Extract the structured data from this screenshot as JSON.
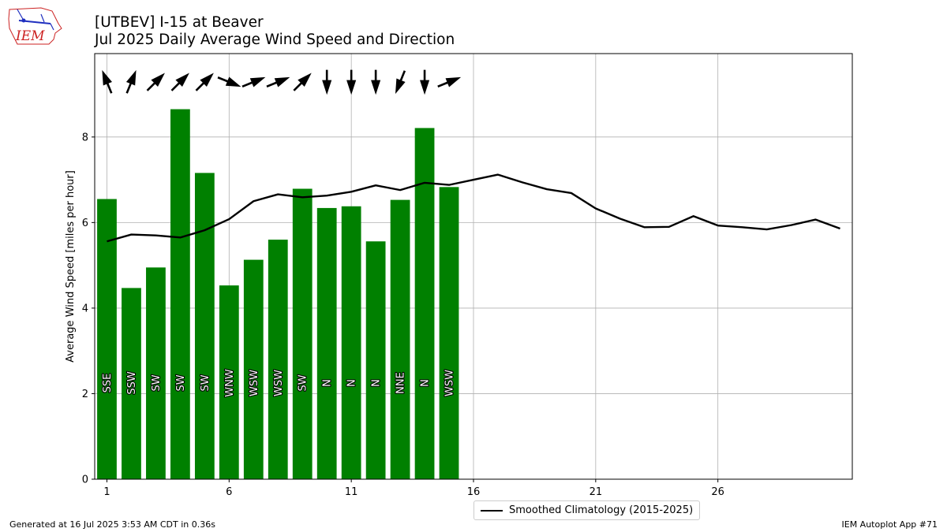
{
  "header": {
    "logo_text": "IEM",
    "title_line1": "[UTBEV] I-15 at Beaver",
    "title_line2": "Jul 2025 Daily Average Wind Speed and Direction"
  },
  "footer": {
    "generated": "Generated at 16 Jul 2025 3:53 AM CDT in 0.36s",
    "app": "IEM Autoplot App #71"
  },
  "legend": {
    "label": "Smoothed Climatology (2015-2025)"
  },
  "colors": {
    "bar": "#008000",
    "line": "#000000",
    "grid": "#b0b0b0",
    "logo_red": "#cc2222",
    "logo_blue": "#1f2fbf"
  },
  "chart_data": {
    "type": "bar",
    "ylabel": "Average Wind Speed [miles per hour]",
    "xlabel": "",
    "xlim": [
      0.5,
      31.5
    ],
    "ylim": [
      0,
      9.95
    ],
    "xticks": [
      1,
      6,
      11,
      16,
      21,
      26
    ],
    "yticks": [
      0,
      2,
      4,
      6,
      8
    ],
    "grid": true,
    "legend_position": "bottom-center",
    "bars": {
      "days": [
        1,
        2,
        3,
        4,
        5,
        6,
        7,
        8,
        9,
        10,
        11,
        12,
        13,
        14,
        15
      ],
      "speed": [
        6.55,
        4.47,
        4.95,
        8.65,
        7.16,
        4.53,
        5.13,
        5.6,
        6.79,
        6.34,
        6.38,
        5.56,
        6.53,
        8.21,
        6.83
      ],
      "direction_label": [
        "SSE",
        "SSW",
        "SW",
        "SW",
        "SW",
        "WNW",
        "WSW",
        "WSW",
        "SW",
        "N",
        "N",
        "N",
        "NNE",
        "N",
        "WSW"
      ],
      "direction_deg": [
        158,
        202,
        225,
        225,
        225,
        292,
        248,
        248,
        225,
        0,
        0,
        0,
        22,
        0,
        248
      ]
    },
    "series": [
      {
        "name": "Smoothed Climatology (2015-2025)",
        "x": [
          1,
          2,
          3,
          4,
          5,
          6,
          7,
          8,
          9,
          10,
          11,
          12,
          13,
          14,
          15,
          16,
          17,
          18,
          19,
          20,
          21,
          22,
          23,
          24,
          25,
          26,
          27,
          28,
          29,
          30,
          31
        ],
        "values": [
          5.56,
          5.72,
          5.7,
          5.65,
          5.82,
          6.08,
          6.5,
          6.66,
          6.59,
          6.63,
          6.72,
          6.87,
          6.76,
          6.93,
          6.88,
          7.0,
          7.12,
          6.94,
          6.78,
          6.69,
          6.33,
          6.09,
          5.89,
          5.9,
          6.15,
          5.93,
          5.89,
          5.84,
          5.94,
          6.07,
          5.86
        ]
      }
    ]
  }
}
